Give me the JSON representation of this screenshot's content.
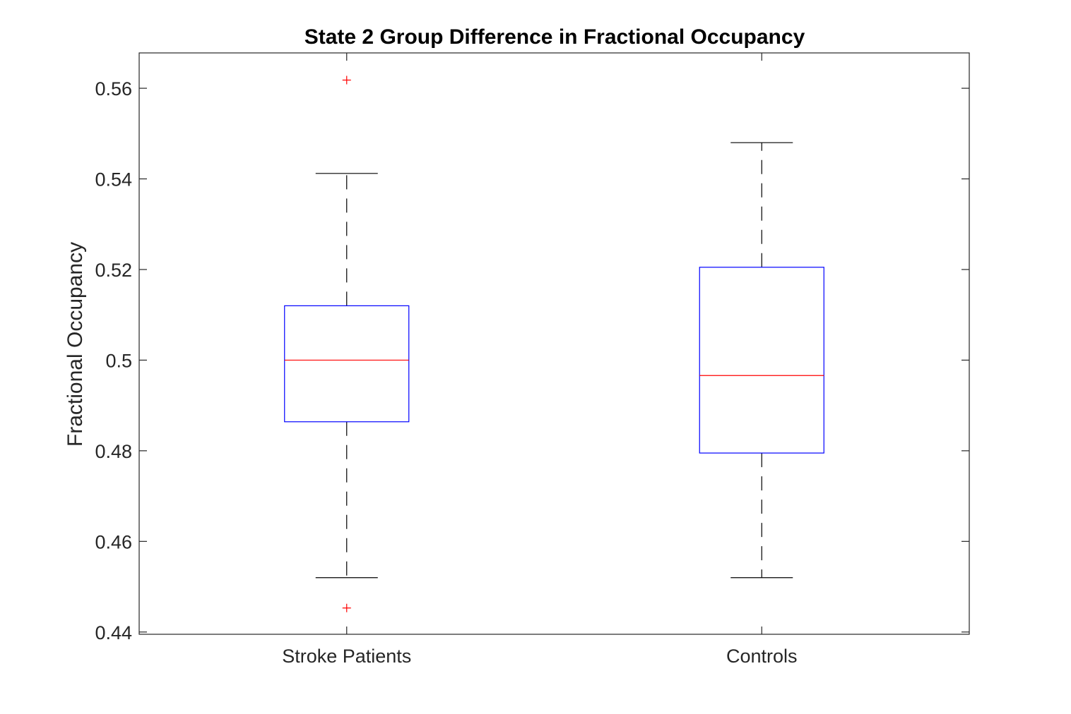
{
  "chart_data": {
    "type": "box",
    "title": "State 2 Group Difference in Fractional Occupancy",
    "xlabel": "",
    "ylabel": "Fractional Occupancy",
    "categories": [
      "Stroke Patients",
      "Controls"
    ],
    "ylim": [
      0.4395,
      0.5678
    ],
    "yticks": [
      0.44,
      0.46,
      0.48,
      0.5,
      0.52,
      0.54,
      0.56
    ],
    "ytick_labels": [
      "0.44",
      "0.46",
      "0.48",
      "0.5",
      "0.52",
      "0.54",
      "0.56"
    ],
    "grid": false,
    "legend": "none",
    "boxes": [
      {
        "category": "Stroke Patients",
        "whisker_low": 0.452,
        "q1": 0.4864,
        "median": 0.5,
        "q3": 0.512,
        "whisker_high": 0.5412,
        "outliers": [
          0.5618,
          0.4453
        ]
      },
      {
        "category": "Controls",
        "whisker_low": 0.452,
        "q1": 0.4795,
        "median": 0.4966,
        "q3": 0.5205,
        "whisker_high": 0.548,
        "outliers": []
      }
    ],
    "colors": {
      "box": "#0000ff",
      "median": "#ff0000",
      "whisker": "#000000",
      "outlier": "#ff0000",
      "axis": "#262626"
    }
  }
}
